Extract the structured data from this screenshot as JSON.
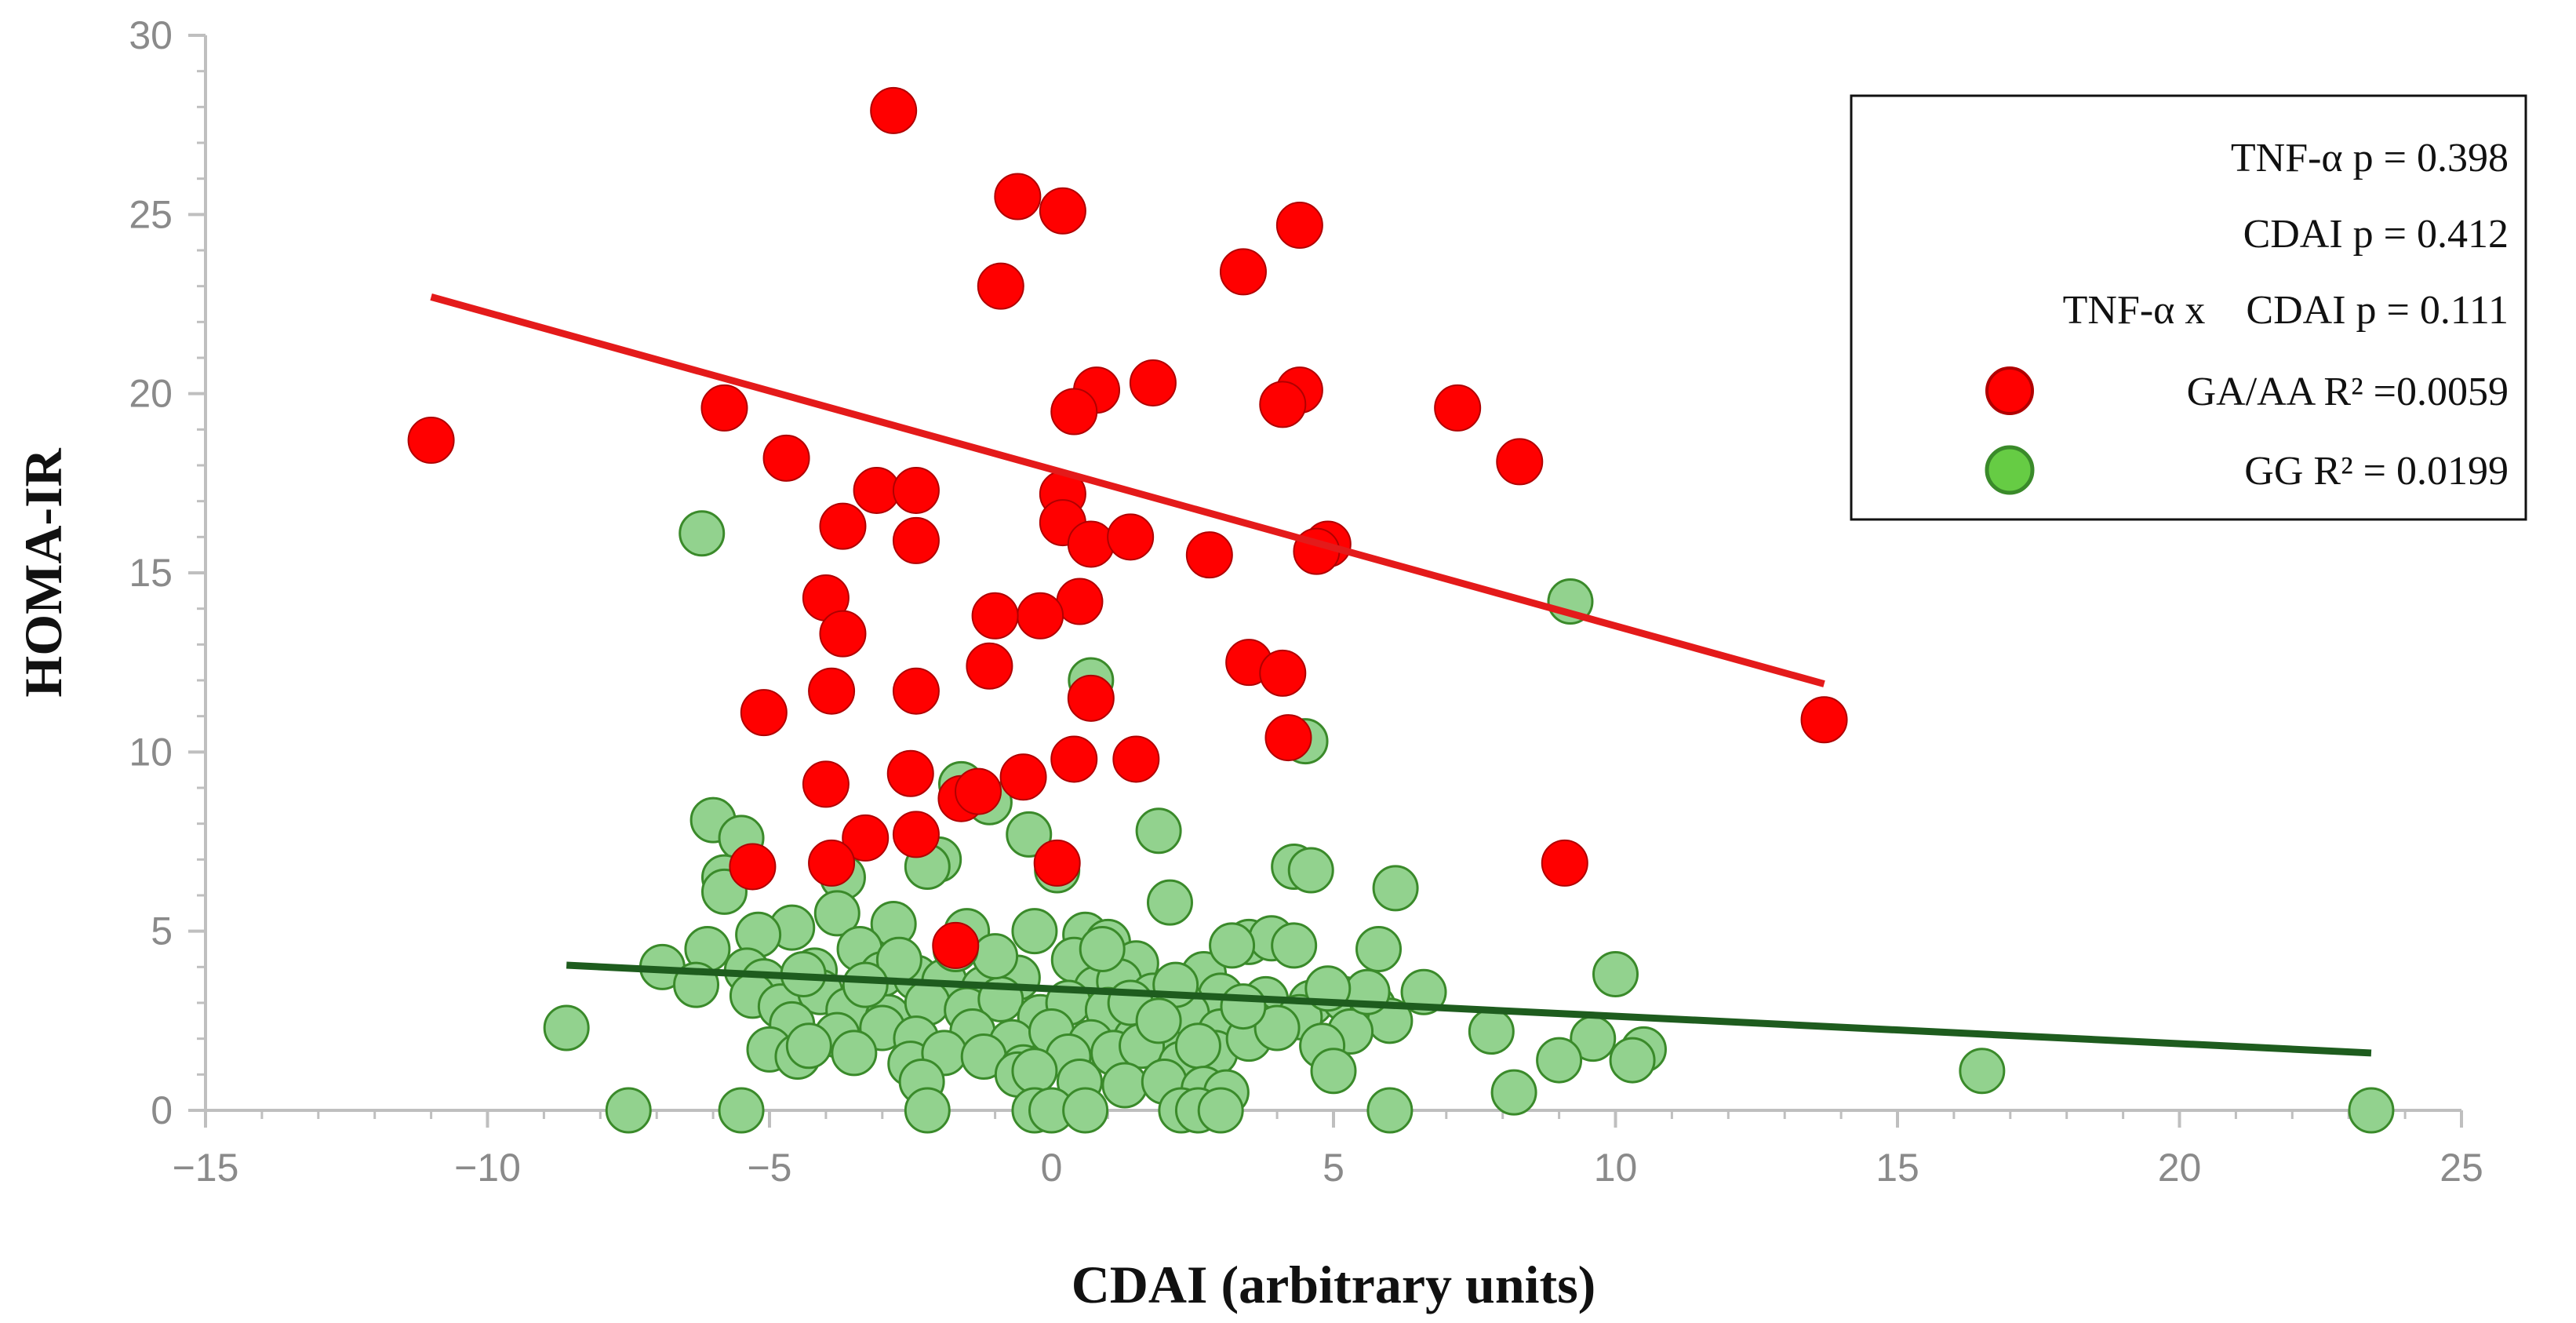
{
  "chart_data": {
    "type": "scatter",
    "title": "",
    "xlabel": "CDAI (arbitrary units)",
    "ylabel": "HOMA-IR",
    "xlim": [
      -15,
      25
    ],
    "ylim": [
      0,
      30
    ],
    "x_ticks": [
      -15,
      -10,
      -5,
      0,
      5,
      10,
      15,
      20,
      25
    ],
    "x_tick_labels": [
      "−15",
      "−10",
      "−5",
      "0",
      "5",
      "10",
      "15",
      "20",
      "25"
    ],
    "y_ticks": [
      0,
      5,
      10,
      15,
      20,
      25,
      30
    ],
    "y_tick_labels": [
      "0",
      "5",
      "10",
      "15",
      "20",
      "25",
      "30"
    ],
    "grid": false,
    "legend_position": "top-right",
    "stats_lines": [
      "TNF-α p = 0.398",
      "CDAI p = 0.412",
      "TNF-α x    CDAI p = 0.111"
    ],
    "series": [
      {
        "name": "GG",
        "legend_label": "GG R² = 0.0199",
        "fill": "#92d28e",
        "stroke": "#3a8a2a",
        "legend_fill": "#66cc44",
        "points": [
          [
            -6.2,
            16.1
          ],
          [
            9.2,
            14.2
          ],
          [
            0.7,
            12.0
          ],
          [
            4.5,
            10.3
          ],
          [
            -1.6,
            9.1
          ],
          [
            -1.1,
            8.6
          ],
          [
            -6.0,
            8.1
          ],
          [
            -5.5,
            7.6
          ],
          [
            1.9,
            7.8
          ],
          [
            -0.4,
            7.7
          ],
          [
            -2.0,
            7.0
          ],
          [
            -2.2,
            6.8
          ],
          [
            4.3,
            6.8
          ],
          [
            4.6,
            6.7
          ],
          [
            0.1,
            6.7
          ],
          [
            -3.7,
            6.5
          ],
          [
            -5.8,
            6.5
          ],
          [
            -5.8,
            6.1
          ],
          [
            6.1,
            6.2
          ],
          [
            2.1,
            5.8
          ],
          [
            -3.8,
            5.5
          ],
          [
            -1.5,
            5.0
          ],
          [
            -2.8,
            5.2
          ],
          [
            -0.3,
            5.0
          ],
          [
            0.6,
            4.9
          ],
          [
            1.0,
            4.7
          ],
          [
            3.5,
            4.7
          ],
          [
            3.9,
            4.8
          ],
          [
            -6.1,
            4.5
          ],
          [
            -4.6,
            5.1
          ],
          [
            -5.2,
            4.9
          ],
          [
            5.8,
            4.5
          ],
          [
            1.5,
            4.1
          ],
          [
            2.7,
            3.8
          ],
          [
            4.3,
            4.6
          ],
          [
            3.0,
            3.2
          ],
          [
            -6.9,
            4.0
          ],
          [
            -5.4,
            3.9
          ],
          [
            -5.1,
            3.6
          ],
          [
            -4.2,
            3.9
          ],
          [
            -3.4,
            4.5
          ],
          [
            -3.0,
            3.8
          ],
          [
            -2.4,
            3.7
          ],
          [
            -1.9,
            3.6
          ],
          [
            -1.2,
            3.4
          ],
          [
            -0.6,
            3.7
          ],
          [
            0.4,
            4.2
          ],
          [
            0.8,
            3.4
          ],
          [
            1.2,
            3.6
          ],
          [
            1.8,
            3.2
          ],
          [
            2.3,
            3.0
          ],
          [
            3.2,
            4.6
          ],
          [
            3.8,
            3.1
          ],
          [
            4.6,
            3.0
          ],
          [
            5.2,
            3.1
          ],
          [
            5.7,
            2.9
          ],
          [
            6.0,
            2.5
          ],
          [
            6.6,
            3.3
          ],
          [
            -6.3,
            3.5
          ],
          [
            -5.3,
            3.2
          ],
          [
            -4.8,
            2.9
          ],
          [
            -4.1,
            3.3
          ],
          [
            -3.6,
            2.8
          ],
          [
            -2.9,
            2.6
          ],
          [
            -2.2,
            3.0
          ],
          [
            -1.5,
            2.8
          ],
          [
            -0.9,
            3.1
          ],
          [
            -0.2,
            2.6
          ],
          [
            0.3,
            3.0
          ],
          [
            1.0,
            2.8
          ],
          [
            1.7,
            2.4
          ],
          [
            2.4,
            2.7
          ],
          [
            3.0,
            2.2
          ],
          [
            3.6,
            2.4
          ],
          [
            4.4,
            2.6
          ],
          [
            5.3,
            2.2
          ],
          [
            -4.6,
            2.4
          ],
          [
            -3.8,
            2.1
          ],
          [
            -3.0,
            2.3
          ],
          [
            -2.4,
            2.0
          ],
          [
            -1.4,
            2.2
          ],
          [
            -0.7,
            1.9
          ],
          [
            0.0,
            2.2
          ],
          [
            0.7,
            1.9
          ],
          [
            1.5,
            2.0
          ],
          [
            2.0,
            1.7
          ],
          [
            2.9,
            1.6
          ],
          [
            3.5,
            2.0
          ],
          [
            4.0,
            2.3
          ],
          [
            4.8,
            1.8
          ],
          [
            -5.0,
            1.7
          ],
          [
            -4.5,
            1.5
          ],
          [
            -3.5,
            1.6
          ],
          [
            -2.5,
            1.3
          ],
          [
            -1.9,
            1.6
          ],
          [
            -1.2,
            1.5
          ],
          [
            -0.5,
            1.2
          ],
          [
            0.3,
            1.5
          ],
          [
            1.1,
            1.6
          ],
          [
            1.6,
            1.8
          ],
          [
            2.3,
            1.3
          ],
          [
            2.6,
            1.8
          ],
          [
            -8.6,
            2.3
          ],
          [
            7.8,
            2.2
          ],
          [
            9.6,
            2.0
          ],
          [
            10.5,
            1.7
          ],
          [
            9.0,
            1.4
          ],
          [
            10.3,
            1.4
          ],
          [
            10.0,
            3.8
          ],
          [
            5.0,
            1.1
          ],
          [
            16.5,
            1.1
          ],
          [
            -2.3,
            0.8
          ],
          [
            -0.6,
            1.0
          ],
          [
            -0.3,
            1.1
          ],
          [
            0.5,
            0.8
          ],
          [
            1.3,
            0.7
          ],
          [
            2.0,
            0.8
          ],
          [
            2.7,
            0.6
          ],
          [
            3.1,
            0.5
          ],
          [
            8.2,
            0.5
          ],
          [
            -7.5,
            0.0
          ],
          [
            -5.5,
            0.0
          ],
          [
            -2.2,
            0.0
          ],
          [
            -0.3,
            0.0
          ],
          [
            0.0,
            0.0
          ],
          [
            0.6,
            0.0
          ],
          [
            2.3,
            0.0
          ],
          [
            2.6,
            0.0
          ],
          [
            3.0,
            0.0
          ],
          [
            6.0,
            0.0
          ],
          [
            23.4,
            0.0
          ],
          [
            -4.4,
            3.8
          ],
          [
            -1.0,
            4.3
          ],
          [
            2.2,
            3.5
          ],
          [
            5.6,
            3.3
          ],
          [
            -2.7,
            4.2
          ],
          [
            0.9,
            4.5
          ],
          [
            -3.3,
            3.5
          ],
          [
            1.4,
            3.0
          ],
          [
            4.9,
            3.4
          ],
          [
            -4.3,
            1.8
          ],
          [
            1.9,
            2.5
          ],
          [
            3.4,
            2.9
          ],
          [
            -1.7,
            4.5
          ]
        ]
      },
      {
        "name": "GA/AA",
        "legend_label": "GA/AA R² =0.0059",
        "fill": "#ff0000",
        "stroke": "#b00000",
        "legend_fill": "#ff0000",
        "points": [
          [
            -2.8,
            27.9
          ],
          [
            -0.6,
            25.5
          ],
          [
            0.2,
            25.1
          ],
          [
            4.4,
            24.7
          ],
          [
            3.4,
            23.4
          ],
          [
            -0.9,
            23.0
          ],
          [
            1.8,
            20.3
          ],
          [
            0.8,
            20.1
          ],
          [
            4.4,
            20.1
          ],
          [
            4.1,
            19.7
          ],
          [
            7.2,
            19.6
          ],
          [
            0.4,
            19.5
          ],
          [
            -5.8,
            19.6
          ],
          [
            -11.0,
            18.7
          ],
          [
            -4.7,
            18.2
          ],
          [
            8.3,
            18.1
          ],
          [
            -3.1,
            17.3
          ],
          [
            -2.4,
            17.3
          ],
          [
            0.2,
            17.2
          ],
          [
            -3.7,
            16.3
          ],
          [
            0.2,
            16.4
          ],
          [
            -2.4,
            15.9
          ],
          [
            0.7,
            15.8
          ],
          [
            1.4,
            16.0
          ],
          [
            4.9,
            15.8
          ],
          [
            4.7,
            15.6
          ],
          [
            2.8,
            15.5
          ],
          [
            -4.0,
            14.3
          ],
          [
            -3.7,
            13.3
          ],
          [
            0.5,
            14.2
          ],
          [
            -0.2,
            13.8
          ],
          [
            -1.0,
            13.8
          ],
          [
            3.5,
            12.5
          ],
          [
            4.1,
            12.2
          ],
          [
            -1.1,
            12.4
          ],
          [
            -3.9,
            11.7
          ],
          [
            -2.4,
            11.7
          ],
          [
            0.7,
            11.5
          ],
          [
            -5.1,
            11.1
          ],
          [
            13.7,
            10.9
          ],
          [
            4.2,
            10.4
          ],
          [
            -4.0,
            9.1
          ],
          [
            -2.5,
            9.4
          ],
          [
            -0.5,
            9.3
          ],
          [
            0.4,
            9.8
          ],
          [
            1.5,
            9.8
          ],
          [
            -1.6,
            8.7
          ],
          [
            -1.3,
            8.9
          ],
          [
            -3.3,
            7.6
          ],
          [
            -2.4,
            7.7
          ],
          [
            -5.3,
            6.8
          ],
          [
            -3.9,
            6.9
          ],
          [
            0.1,
            6.9
          ],
          [
            9.1,
            6.9
          ],
          [
            -1.7,
            4.6
          ]
        ]
      }
    ],
    "trendlines": [
      {
        "series": "GA/AA",
        "color": "#e41a1a",
        "x": [
          -11.0,
          13.7
        ],
        "y": [
          22.7,
          11.9
        ]
      },
      {
        "series": "GG",
        "color": "#1e5c1e",
        "x": [
          -8.6,
          23.4
        ],
        "y": [
          4.05,
          1.6
        ]
      }
    ]
  }
}
